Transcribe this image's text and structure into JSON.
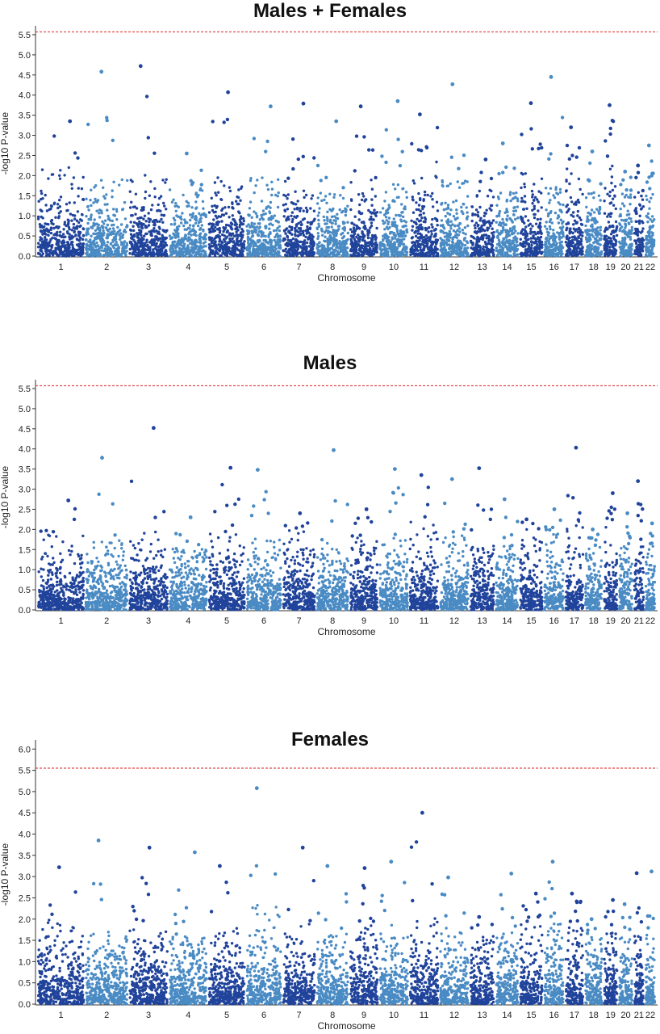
{
  "chart_data": [
    {
      "type": "scatter",
      "title": "Males + Females",
      "xlabel": "Chromosome",
      "ylabel": "-log10 P-value",
      "ylim": [
        0,
        5.6
      ],
      "yticks": [
        "0.0",
        "0.5",
        "1.0",
        "1.5",
        "2.0",
        "2.5",
        "3.0",
        "3.5",
        "4.0",
        "4.5",
        "5.0",
        "5.5"
      ],
      "threshold": 5.57,
      "chromosomes": [
        "1",
        "2",
        "3",
        "4",
        "5",
        "6",
        "7",
        "8",
        "9",
        "10",
        "11",
        "12",
        "13",
        "14",
        "15",
        "16",
        "17",
        "18",
        "19",
        "20",
        "21",
        "22"
      ],
      "max_per_chromosome": [
        3.35,
        4.58,
        4.72,
        2.55,
        4.07,
        3.72,
        3.79,
        3.35,
        3.72,
        3.85,
        3.52,
        4.27,
        2.4,
        2.8,
        3.8,
        4.45,
        3.2,
        2.6,
        3.75,
        2.1,
        2.25,
        2.75
      ],
      "density_per_chromosome": [
        2.2,
        1.9,
        2.2,
        1.7,
        2.0,
        2.0,
        1.9,
        1.6,
        1.9,
        1.8,
        2.6,
        1.9,
        1.7,
        1.6,
        2.3,
        1.9,
        2.3,
        1.6,
        2.3,
        1.6,
        1.6,
        1.6
      ],
      "grid": false,
      "colors": {
        "dark": "#20439b",
        "light": "#4a8bc4",
        "threshold": "#e05050"
      }
    },
    {
      "type": "scatter",
      "title": "Males",
      "xlabel": "Chromosome",
      "ylabel": "-log10 P-value",
      "ylim": [
        0,
        5.6
      ],
      "yticks": [
        "0.0",
        "0.5",
        "1.0",
        "1.5",
        "2.0",
        "2.5",
        "3.0",
        "3.5",
        "4.0",
        "4.5",
        "5.0",
        "5.5"
      ],
      "threshold": 5.57,
      "chromosomes": [
        "1",
        "2",
        "3",
        "4",
        "5",
        "6",
        "7",
        "8",
        "9",
        "10",
        "11",
        "12",
        "13",
        "14",
        "15",
        "16",
        "17",
        "18",
        "19",
        "20",
        "21",
        "22"
      ],
      "max_per_chromosome": [
        2.72,
        3.78,
        4.52,
        2.3,
        3.53,
        3.48,
        2.4,
        3.97,
        2.5,
        3.5,
        3.35,
        3.25,
        3.52,
        2.75,
        2.25,
        2.5,
        4.03,
        2.0,
        2.9,
        2.4,
        3.2,
        2.15
      ],
      "density_per_chromosome": [
        1.9,
        1.8,
        2.1,
        1.6,
        1.9,
        1.8,
        2.0,
        1.7,
        1.8,
        1.8,
        2.2,
        1.9,
        1.6,
        1.6,
        2.0,
        1.9,
        2.2,
        1.6,
        2.2,
        1.6,
        1.6,
        1.6
      ],
      "grid": false,
      "colors": {
        "dark": "#20439b",
        "light": "#4a8bc4",
        "threshold": "#e05050"
      }
    },
    {
      "type": "scatter",
      "title": "Females",
      "xlabel": "Chromosome",
      "ylabel": "-log10 P-value",
      "ylim": [
        0,
        6.1
      ],
      "yticks": [
        "0.0",
        "0.5",
        "1.0",
        "1.5",
        "2.0",
        "2.5",
        "3.0",
        "3.5",
        "4.0",
        "4.5",
        "5.0",
        "5.5",
        "6.0"
      ],
      "threshold": 5.55,
      "chromosomes": [
        "1",
        "2",
        "3",
        "4",
        "5",
        "6",
        "7",
        "8",
        "9",
        "10",
        "11",
        "12",
        "13",
        "14",
        "15",
        "16",
        "17",
        "18",
        "19",
        "20",
        "21",
        "22"
      ],
      "max_per_chromosome": [
        3.22,
        3.85,
        3.68,
        3.57,
        3.25,
        5.08,
        3.68,
        3.25,
        3.2,
        3.35,
        4.5,
        2.98,
        2.05,
        3.07,
        2.6,
        3.35,
        2.6,
        2.0,
        2.45,
        2.35,
        3.08,
        3.12
      ],
      "density_per_chromosome": [
        2.0,
        1.7,
        1.8,
        1.6,
        1.9,
        2.4,
        1.9,
        1.7,
        1.9,
        1.9,
        2.2,
        1.8,
        1.6,
        1.7,
        1.9,
        1.9,
        1.9,
        1.6,
        1.8,
        1.6,
        1.6,
        1.7
      ],
      "grid": false,
      "colors": {
        "dark": "#20439b",
        "light": "#4a8bc4",
        "threshold": "#e05050"
      }
    }
  ]
}
